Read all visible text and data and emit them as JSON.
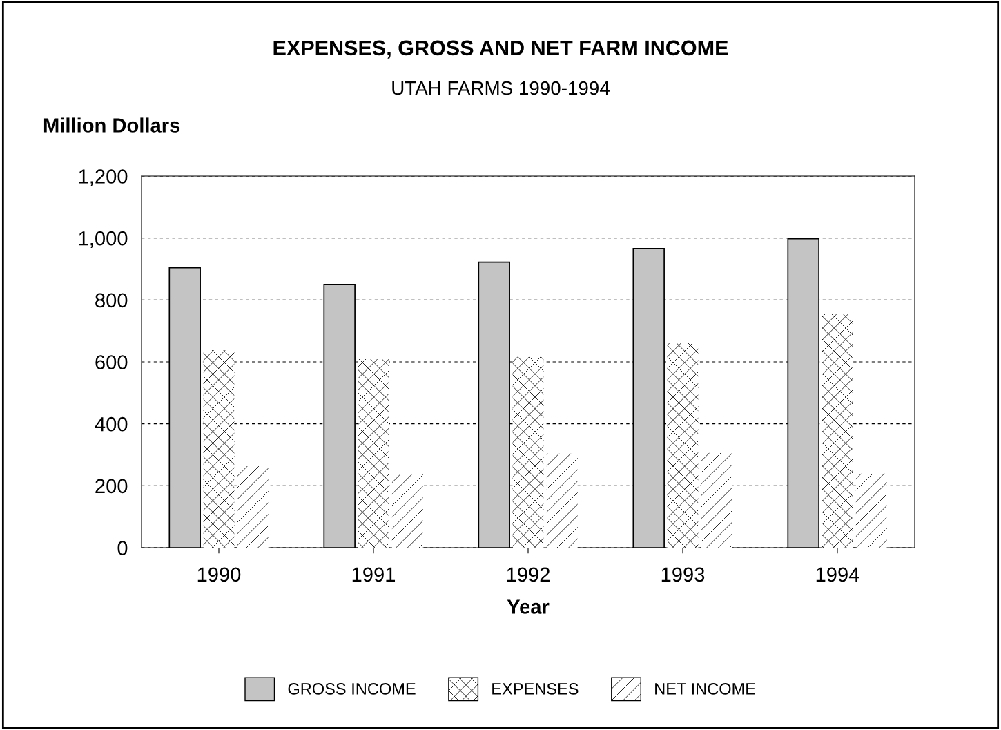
{
  "chart_data": {
    "type": "bar",
    "title": "EXPENSES, GROSS AND NET FARM INCOME",
    "subtitle": "UTAH FARMS 1990-1994",
    "ylabel": "Million Dollars",
    "xlabel": "Year",
    "categories": [
      "1990",
      "1991",
      "1992",
      "1993",
      "1994"
    ],
    "series": [
      {
        "name": "GROSS INCOME",
        "color": "#c4c4c4",
        "values": [
          904,
          850,
          922,
          966,
          998
        ]
      },
      {
        "name": "EXPENSES",
        "color": "#ffffff",
        "values": [
          638,
          609,
          616,
          661,
          754
        ]
      },
      {
        "name": "NET INCOME",
        "color": "#ffffff",
        "values": [
          263,
          237,
          304,
          306,
          239
        ]
      }
    ],
    "ylim": [
      0,
      1200
    ],
    "yticks": [
      0,
      {
        "value": 200,
        "label": "200"
      },
      {
        "value": 400,
        "label": "400"
      },
      {
        "value": 600,
        "label": "600"
      },
      {
        "value": 800,
        "label": "800"
      },
      {
        "value": 1000,
        "label": "1,000"
      },
      {
        "value": 1200,
        "label": "1,200"
      }
    ],
    "grid": "y",
    "legend": "bottom"
  }
}
